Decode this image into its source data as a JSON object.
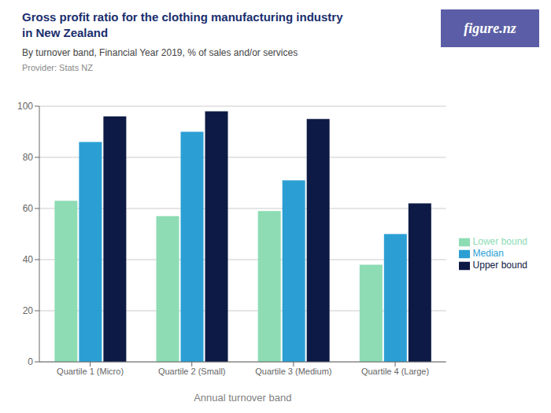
{
  "chart_data": {
    "type": "bar",
    "title": [
      "Gross profit ratio for the clothing manufacturing industry",
      "in New Zealand"
    ],
    "subtitle": "By turnover band, Financial Year 2019, % of sales and/or services",
    "source": "Provider: Stats NZ",
    "annotations": [
      "figure.nz"
    ],
    "xlabel": "Annual turnover band",
    "categories": [
      "Quartile 1 (Micro)",
      "Quartile 2 (Small)",
      "Quartile 3 (Medium)",
      "Quartile 4 (Large)"
    ],
    "series": [
      {
        "name": "Lower bound",
        "color": "#8ddcb4",
        "values": [
          63,
          57,
          59,
          38
        ]
      },
      {
        "name": "Median",
        "color": "#2b9fd4",
        "values": [
          86,
          90,
          71,
          50
        ]
      },
      {
        "name": "Upper bound",
        "color": "#0d1a45",
        "values": [
          96,
          98,
          95,
          62
        ]
      }
    ],
    "ylim": [
      0,
      100
    ],
    "yticks": [
      0,
      20,
      40,
      60,
      80,
      100
    ],
    "grid": true,
    "legend": "right"
  }
}
